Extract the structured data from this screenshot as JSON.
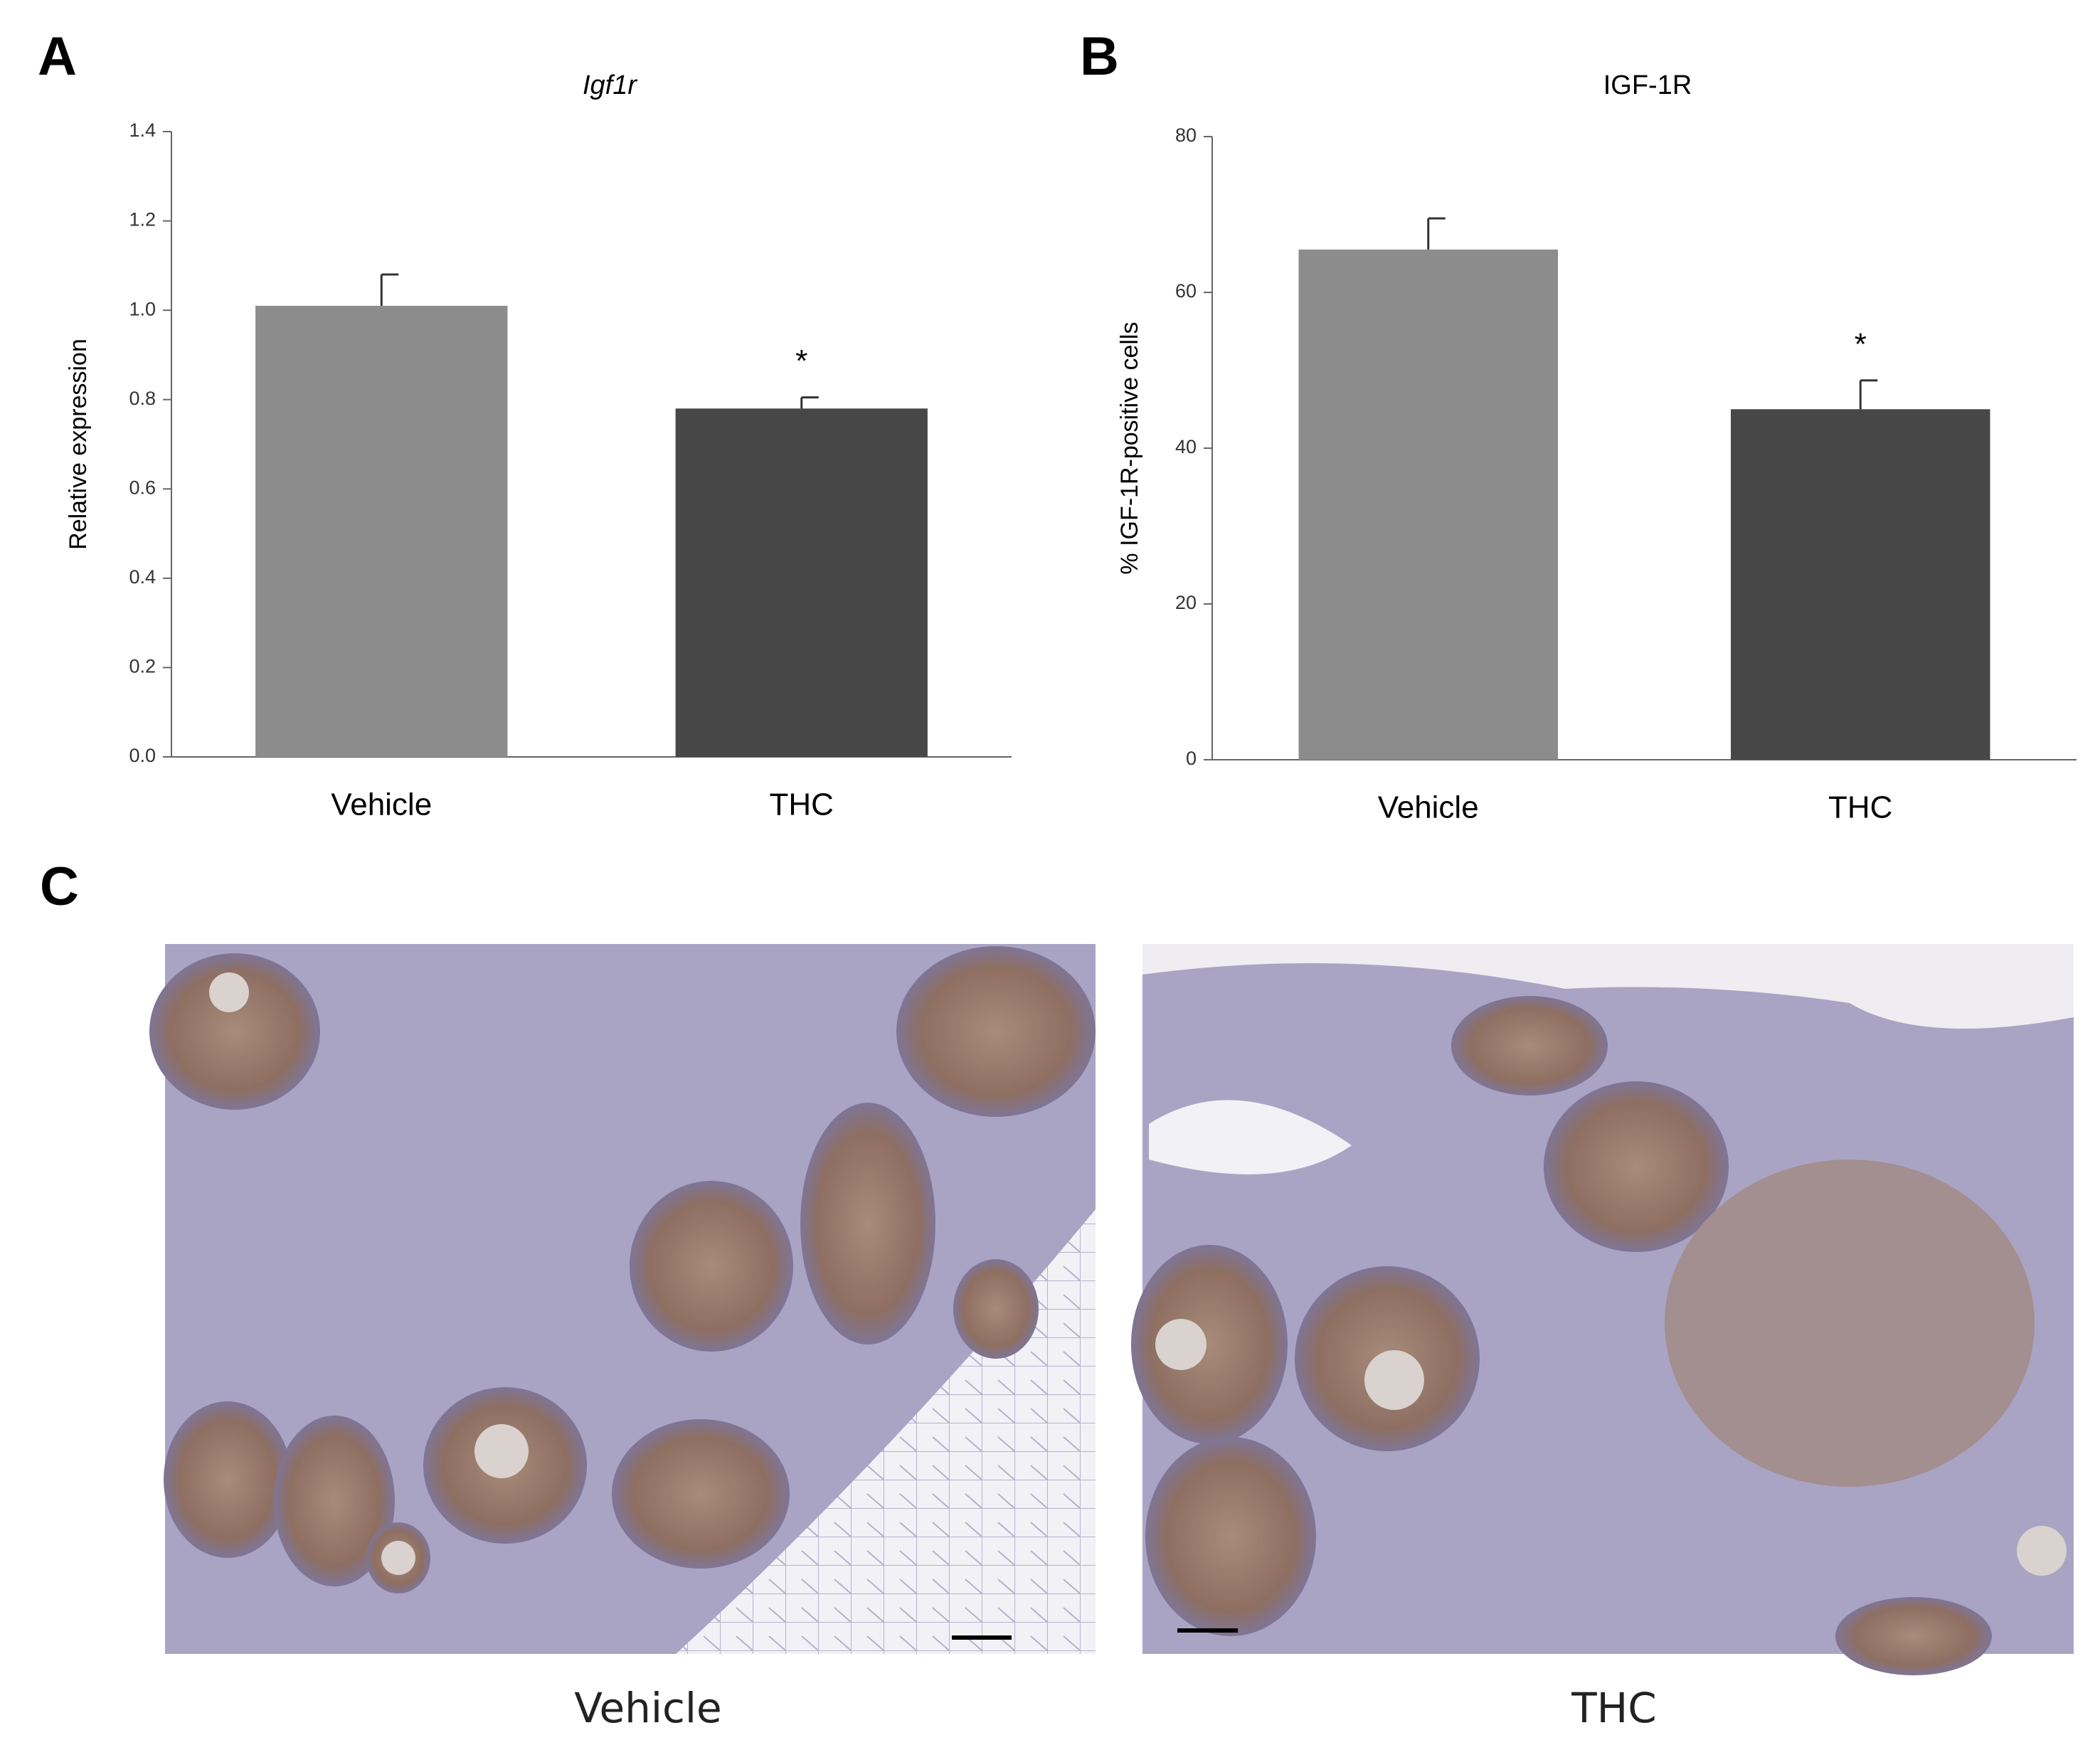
{
  "chart_data": [
    {
      "type": "bar",
      "panel_label": "A",
      "title": "Igf1r",
      "y_label": "Relative expression",
      "categories": [
        "Vehicle",
        "THC"
      ],
      "values": [
        1.01,
        0.78
      ],
      "errors": [
        0.07,
        0.025
      ],
      "colors": [
        "#8c8c8c",
        "#474747"
      ],
      "ylim": [
        0,
        1.4
      ],
      "yticks": [
        {
          "value": 0,
          "label": "0.0"
        },
        0.2,
        0.4,
        0.6,
        0.8,
        {
          "value": 1,
          "label": "1.0"
        },
        1.2,
        1.4
      ],
      "annotations": [
        {
          "text": "*",
          "category": "THC"
        }
      ]
    },
    {
      "type": "bar",
      "panel_label": "B",
      "title": "IGF-1R",
      "y_label": "% IGF-1R-positive cells",
      "categories": [
        "Vehicle",
        "THC"
      ],
      "values": [
        65.5,
        45
      ],
      "errors": [
        4,
        3.7
      ],
      "colors": [
        "#8c8c8c",
        "#474747"
      ],
      "ylim": [
        0,
        80
      ],
      "yticks": [
        0,
        20,
        40,
        60,
        80
      ],
      "annotations": [
        {
          "text": "*",
          "category": "THC"
        }
      ]
    }
  ],
  "micrographs": {
    "panel_label": "C",
    "labels": [
      "Vehicle",
      "THC"
    ]
  }
}
